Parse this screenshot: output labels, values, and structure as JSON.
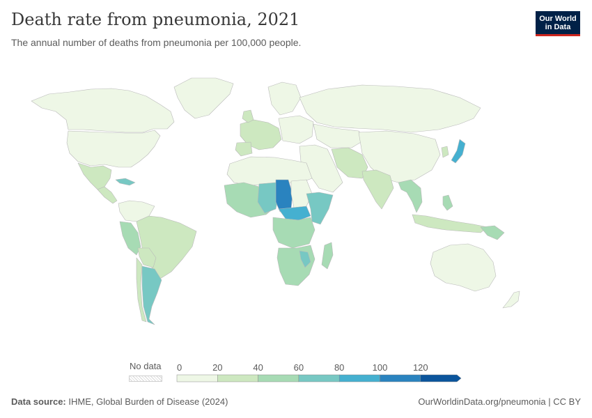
{
  "header": {
    "title": "Death rate from pneumonia, 2021",
    "subtitle": "The annual number of deaths from pneumonia per 100,000 people."
  },
  "logo": {
    "line1": "Our World",
    "line2": "in Data"
  },
  "legend": {
    "no_data_label": "No data",
    "ticks": [
      "0",
      "20",
      "40",
      "60",
      "80",
      "100",
      "120"
    ],
    "bins": [
      {
        "from": 0,
        "to": 20,
        "color": "#eef7e6"
      },
      {
        "from": 20,
        "to": 40,
        "color": "#cde8c0"
      },
      {
        "from": 40,
        "to": 60,
        "color": "#a7dbb4"
      },
      {
        "from": 60,
        "to": 80,
        "color": "#77c8c3"
      },
      {
        "from": 80,
        "to": 100,
        "color": "#45b0d0"
      },
      {
        "from": 100,
        "to": 120,
        "color": "#2a83bf"
      },
      {
        "from": 120,
        "to": 140,
        "color": "#0b559c"
      }
    ]
  },
  "footer": {
    "source_label": "Data source:",
    "source_text": "IHME, Global Burden of Disease (2024)",
    "attribution": "OurWorldinData.org/pneumonia | CC BY"
  }
}
